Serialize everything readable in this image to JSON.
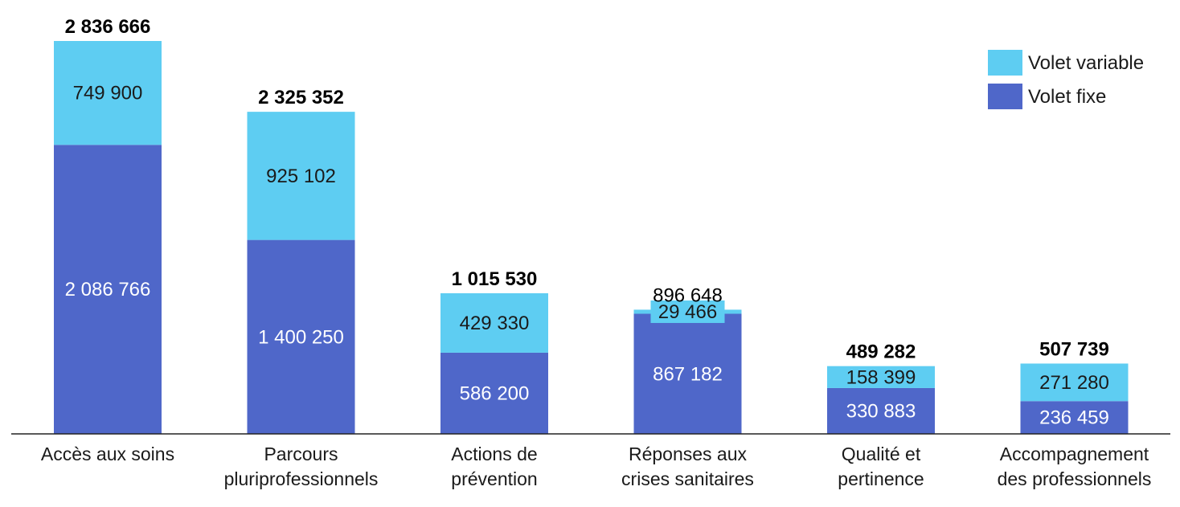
{
  "chart_data": {
    "type": "bar",
    "stacked": true,
    "title": "",
    "xlabel": "",
    "ylabel": "",
    "ylim": [
      0,
      2836666
    ],
    "grid": false,
    "legend_position": "top-right",
    "categories": [
      [
        "Accès aux soins"
      ],
      [
        "Parcours",
        "pluriprofessionnels"
      ],
      [
        "Actions de",
        "prévention"
      ],
      [
        "Réponses aux",
        "crises sanitaires"
      ],
      [
        "Qualité et",
        "pertinence"
      ],
      [
        "Accompagnement",
        "des professionnels"
      ]
    ],
    "series": [
      {
        "name": "Volet fixe",
        "color": "#4f67c9",
        "label_color": "#ffffff",
        "values": [
          2086766,
          1400250,
          586200,
          867182,
          330883,
          236459
        ],
        "labels": [
          "2 086 766",
          "1 400 250",
          "586 200",
          "867 182",
          "330 883",
          "236 459"
        ]
      },
      {
        "name": "Volet variable",
        "color": "#5ecdf2",
        "label_color": "#1a1a1a",
        "values": [
          749900,
          925102,
          429330,
          29466,
          158399,
          271280
        ],
        "labels": [
          "749 900",
          "925 102",
          "429 330",
          "29 466",
          "158 399",
          "271 280"
        ]
      }
    ],
    "totals": {
      "values": [
        2836666,
        2325352,
        1015530,
        896648,
        489282,
        507739
      ],
      "labels": [
        "2 836 666",
        "2 325 352",
        "1 015 530",
        "896 648",
        "489 282",
        "507 739"
      ],
      "bold": [
        true,
        true,
        true,
        false,
        true,
        true
      ]
    }
  }
}
